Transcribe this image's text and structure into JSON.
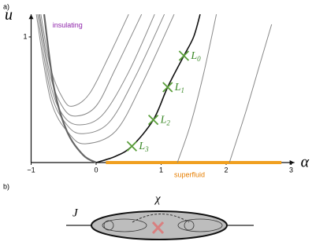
{
  "panel_a": {
    "label": "a)"
  },
  "chart_data": {
    "type": "line",
    "x_label": "α",
    "y_label": "u",
    "xlim": [
      -1,
      3.05
    ],
    "ylim": [
      0,
      1.18
    ],
    "xticks": [
      {
        "value": -1,
        "label": "−1"
      },
      0,
      1,
      2,
      3
    ],
    "yticks": [
      1
    ],
    "annotations": [
      {
        "text": "insulating",
        "color": "#8e24aa",
        "x": -0.67,
        "y": 1.09
      },
      {
        "text": "superfluid",
        "color": "#e67e00",
        "x": 1.2,
        "y": -0.1
      }
    ],
    "phase_line": {
      "x": [
        0.15,
        2.85
      ],
      "values": [
        0,
        0
      ],
      "color": "#f0a020"
    },
    "series": [
      {
        "color": "#888",
        "width": 1,
        "x": [
          -0.85,
          -0.7,
          -0.5,
          -0.35,
          -0.1,
          0.2,
          0.5
        ],
        "values": [
          1.18,
          0.75,
          0.5,
          0.45,
          0.55,
          0.85,
          1.18
        ]
      },
      {
        "color": "#888",
        "width": 1,
        "x": [
          -0.87,
          -0.7,
          -0.5,
          -0.3,
          0,
          0.3,
          0.7
        ],
        "values": [
          1.18,
          0.68,
          0.43,
          0.37,
          0.45,
          0.75,
          1.18
        ]
      },
      {
        "color": "#888",
        "width": 1,
        "x": [
          -0.88,
          -0.7,
          -0.5,
          -0.25,
          0.1,
          0.5,
          0.9
        ],
        "values": [
          1.18,
          0.62,
          0.37,
          0.3,
          0.38,
          0.72,
          1.18
        ]
      },
      {
        "color": "#888",
        "width": 1,
        "x": [
          -0.9,
          -0.7,
          -0.45,
          -0.2,
          0.2,
          0.6,
          1.05
        ],
        "values": [
          1.18,
          0.56,
          0.3,
          0.23,
          0.32,
          0.68,
          1.18
        ]
      },
      {
        "color": "#888",
        "width": 1,
        "x": [
          -0.92,
          -0.7,
          -0.4,
          -0.15,
          0.3,
          0.7,
          1.2
        ],
        "values": [
          1.18,
          0.5,
          0.22,
          0.15,
          0.25,
          0.62,
          1.18
        ]
      },
      {
        "color": "#666",
        "width": 2.2,
        "x": [
          -0.8,
          -0.65,
          -0.45,
          -0.2,
          0
        ],
        "values": [
          1.18,
          0.6,
          0.25,
          0.06,
          0
        ]
      },
      {
        "color": "#111",
        "width": 1.6,
        "x": [
          0,
          0.3,
          0.55,
          0.88,
          1.1,
          1.35,
          1.5,
          1.6
        ],
        "values": [
          0,
          0.05,
          0.13,
          0.34,
          0.6,
          0.85,
          1.0,
          1.18
        ]
      },
      {
        "color": "#888",
        "width": 1,
        "x": [
          1.25,
          1.45,
          1.65,
          1.85
        ],
        "values": [
          0,
          0.3,
          0.7,
          1.18
        ]
      },
      {
        "color": "#888",
        "width": 1,
        "x": [
          2.05,
          2.3,
          2.5,
          2.7
        ],
        "values": [
          0,
          0.4,
          0.75,
          1.1
        ]
      }
    ],
    "points": [
      {
        "label": "L",
        "sub": "0",
        "x": 1.35,
        "y": 0.85
      },
      {
        "label": "L",
        "sub": "1",
        "x": 1.1,
        "y": 0.6
      },
      {
        "label": "L",
        "sub": "2",
        "x": 0.88,
        "y": 0.34
      },
      {
        "label": "L",
        "sub": "3",
        "x": 0.55,
        "y": 0.13
      }
    ]
  },
  "panel_b": {
    "label": "b)",
    "left_label": "J",
    "top_label": "χ"
  }
}
